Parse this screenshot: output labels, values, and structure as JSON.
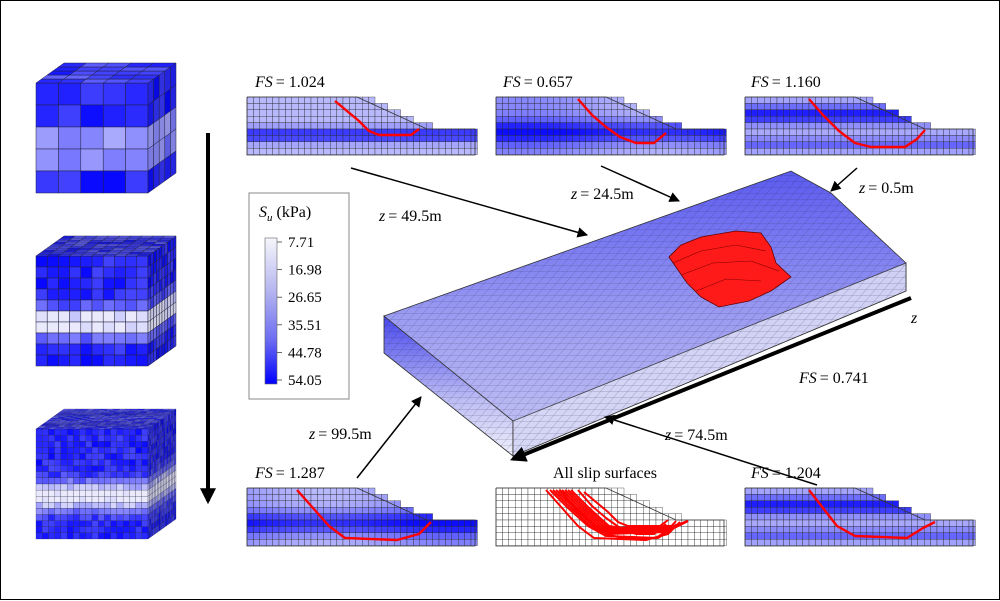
{
  "colors": {
    "su_low": "#f4f4fb",
    "su_high": "#0000ff",
    "slip": "#ff0000",
    "grid": "#1a1a3a"
  },
  "legend": {
    "title_symbol": "S",
    "title_subscript": "u",
    "title_unit": " (kPa)",
    "ticks": [
      "7.71",
      "16.98",
      "26.65",
      "35.51",
      "44.78",
      "54.05"
    ]
  },
  "sections": [
    {
      "id": "top-left",
      "fs_label": "FS",
      "fs_value": "= 1.024",
      "z_label": "z",
      "z_value": "= 49.5m"
    },
    {
      "id": "top-mid",
      "fs_label": "FS",
      "fs_value": "= 0.657",
      "z_label": "z",
      "z_value": "= 24.5m"
    },
    {
      "id": "top-right",
      "fs_label": "FS",
      "fs_value": "= 1.160",
      "z_label": "z",
      "z_value": "= 0.5m"
    },
    {
      "id": "bottom-left",
      "fs_label": "FS",
      "fs_value": "= 1.287",
      "z_label": "z",
      "z_value": "= 99.5m"
    },
    {
      "id": "bottom-right",
      "fs_label": "FS",
      "fs_value": "= 1.204",
      "z_label": "z",
      "z_value": "= 74.5m"
    }
  ],
  "all_slip_label": "All slip surfaces",
  "overall_fs": {
    "label": "FS",
    "value": "= 0.741"
  },
  "z_axis_label": "z",
  "cube_count": 3
}
